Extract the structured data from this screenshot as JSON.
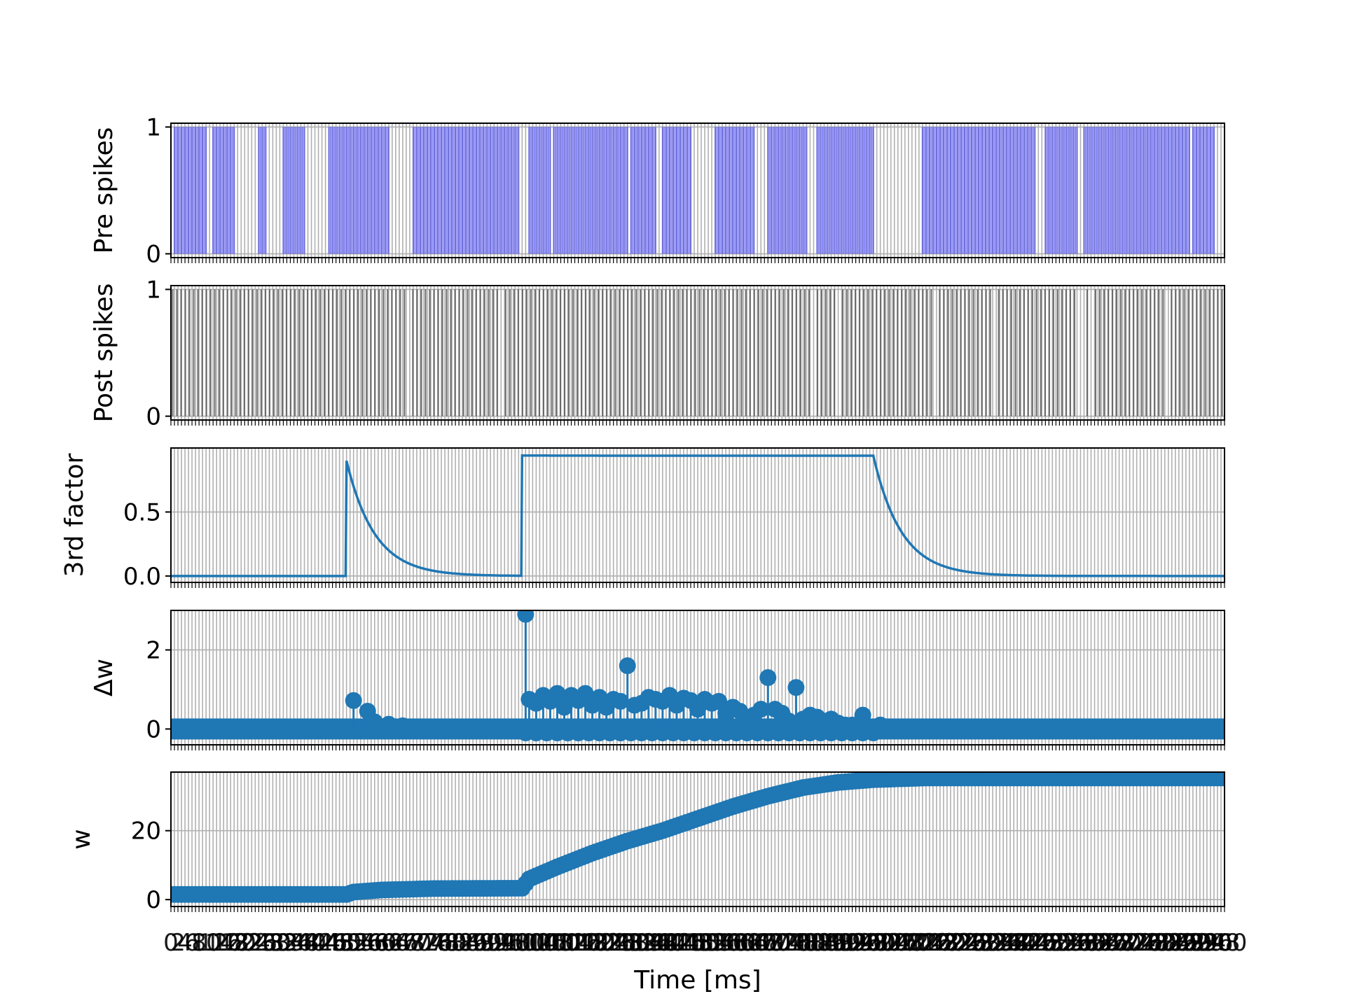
{
  "chart_data": {
    "type": "line",
    "xlabel": "Time [ms]",
    "x_range": [
      0,
      300
    ],
    "grid": true,
    "panels": [
      {
        "id": "pre",
        "ylabel": "Pre spikes",
        "kind": "spike-raster",
        "ylim": [
          -0.03,
          1.03
        ],
        "yticks": [
          {
            "v": 0,
            "label": "0"
          },
          {
            "v": 1,
            "label": "1"
          }
        ],
        "color": "#3a3aee",
        "bursts": [
          [
            1,
            10
          ],
          [
            12,
            18
          ],
          [
            25,
            27
          ],
          [
            32,
            38
          ],
          [
            45,
            62
          ],
          [
            69,
            99
          ],
          [
            102,
            108
          ],
          [
            109,
            130
          ],
          [
            131,
            138
          ],
          [
            140,
            148
          ],
          [
            155,
            166
          ],
          [
            170,
            181
          ],
          [
            184,
            200
          ],
          [
            214,
            246
          ],
          [
            249,
            258
          ],
          [
            260,
            290
          ],
          [
            291,
            297
          ]
        ]
      },
      {
        "id": "post",
        "ylabel": "Post spikes",
        "kind": "spike-raster",
        "ylim": [
          -0.03,
          1.03
        ],
        "yticks": [
          {
            "v": 0,
            "label": "0"
          },
          {
            "v": 1,
            "label": "1"
          }
        ],
        "color": "#5a5a5a",
        "gaps": [
          68,
          94,
          183,
          190,
          218,
          234,
          259,
          262,
          284
        ]
      },
      {
        "id": "third",
        "ylabel": "3rd factor",
        "kind": "line",
        "ylim": [
          -0.05,
          1.0
        ],
        "yticks": [
          {
            "v": 0,
            "label": "0.0"
          },
          {
            "v": 0.5,
            "label": "0.5"
          }
        ],
        "color": "#1f77b4",
        "events": [
          {
            "type": "pulse",
            "t": 50,
            "peak": 0.9,
            "tau": 8
          },
          {
            "type": "plateau",
            "t_on": 100,
            "t_off": 200,
            "level": 0.94,
            "tau": 8
          }
        ]
      },
      {
        "id": "dw",
        "ylabel": "Δw",
        "kind": "stem",
        "ylim": [
          -0.4,
          3.0
        ],
        "yticks": [
          {
            "v": 0,
            "label": "0"
          },
          {
            "v": 2,
            "label": "2"
          }
        ],
        "color": "#1f77b4",
        "points": [
          [
            52,
            0.72
          ],
          [
            56,
            0.45
          ],
          [
            58,
            0.18
          ],
          [
            62,
            0.12
          ],
          [
            66,
            0.08
          ],
          [
            101,
            2.9
          ],
          [
            102,
            0.75
          ],
          [
            104,
            0.65
          ],
          [
            106,
            0.85
          ],
          [
            108,
            0.7
          ],
          [
            110,
            0.9
          ],
          [
            112,
            0.55
          ],
          [
            114,
            0.85
          ],
          [
            116,
            0.72
          ],
          [
            118,
            0.9
          ],
          [
            120,
            0.6
          ],
          [
            122,
            0.8
          ],
          [
            124,
            0.55
          ],
          [
            126,
            0.75
          ],
          [
            128,
            0.7
          ],
          [
            130,
            1.6
          ],
          [
            132,
            0.6
          ],
          [
            134,
            0.65
          ],
          [
            136,
            0.8
          ],
          [
            138,
            0.75
          ],
          [
            140,
            0.7
          ],
          [
            142,
            0.85
          ],
          [
            144,
            0.6
          ],
          [
            146,
            0.78
          ],
          [
            148,
            0.72
          ],
          [
            150,
            0.5
          ],
          [
            152,
            0.75
          ],
          [
            154,
            0.65
          ],
          [
            156,
            0.7
          ],
          [
            158,
            0.4
          ],
          [
            160,
            0.55
          ],
          [
            162,
            0.45
          ],
          [
            164,
            0.3
          ],
          [
            166,
            0.35
          ],
          [
            168,
            0.5
          ],
          [
            170,
            1.3
          ],
          [
            172,
            0.5
          ],
          [
            174,
            0.4
          ],
          [
            176,
            0.2
          ],
          [
            178,
            1.05
          ],
          [
            180,
            0.25
          ],
          [
            182,
            0.35
          ],
          [
            184,
            0.3
          ],
          [
            186,
            0.2
          ],
          [
            188,
            0.25
          ],
          [
            190,
            0.15
          ],
          [
            192,
            0.1
          ],
          [
            194,
            0.1
          ],
          [
            197,
            0.35
          ],
          [
            202,
            0.1
          ],
          [
            208,
            0.05
          ],
          [
            215,
            0.05
          ]
        ]
      },
      {
        "id": "w",
        "ylabel": "w",
        "kind": "scatter",
        "ylim": [
          -2,
          37
        ],
        "yticks": [
          {
            "v": 0,
            "label": "0"
          },
          {
            "v": 20,
            "label": "20"
          }
        ],
        "color": "#1f77b4",
        "curve": [
          [
            0,
            1.5
          ],
          [
            50,
            1.5
          ],
          [
            52,
            2.2
          ],
          [
            60,
            2.8
          ],
          [
            75,
            3.2
          ],
          [
            100,
            3.3
          ],
          [
            102,
            6.0
          ],
          [
            110,
            9.5
          ],
          [
            120,
            13.5
          ],
          [
            130,
            17.0
          ],
          [
            140,
            20.0
          ],
          [
            150,
            23.5
          ],
          [
            160,
            27.0
          ],
          [
            170,
            30.0
          ],
          [
            180,
            32.5
          ],
          [
            190,
            34.0
          ],
          [
            200,
            34.8
          ],
          [
            215,
            35.3
          ],
          [
            300,
            35.3
          ]
        ]
      }
    ],
    "xtick_labels": "illegible overlapping labels"
  }
}
